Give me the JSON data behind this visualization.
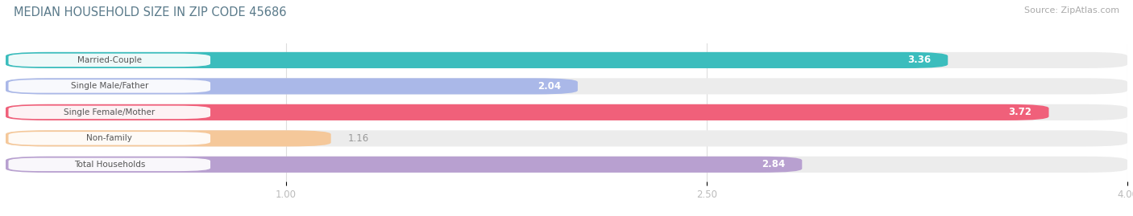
{
  "title": "MEDIAN HOUSEHOLD SIZE IN ZIP CODE 45686",
  "source": "Source: ZipAtlas.com",
  "categories": [
    "Married-Couple",
    "Single Male/Father",
    "Single Female/Mother",
    "Non-family",
    "Total Households"
  ],
  "values": [
    3.36,
    2.04,
    3.72,
    1.16,
    2.84
  ],
  "bar_colors": [
    "#3bbdbd",
    "#aab8e8",
    "#f0607a",
    "#f5c89a",
    "#b8a0d0"
  ],
  "track_color": "#ececec",
  "xmin": 0.0,
  "xmax": 4.0,
  "xticks": [
    1.0,
    2.5,
    4.0
  ],
  "title_color": "#5a7a8a",
  "source_color": "#aaaaaa",
  "bar_height": 0.62,
  "label_pill_color": "#ffffff",
  "label_text_color": "#555555",
  "value_inside_color": "#ffffff",
  "value_outside_color": "#999999",
  "background_color": "#ffffff",
  "grid_color": "#dddddd",
  "tick_color": "#bbbbbb"
}
